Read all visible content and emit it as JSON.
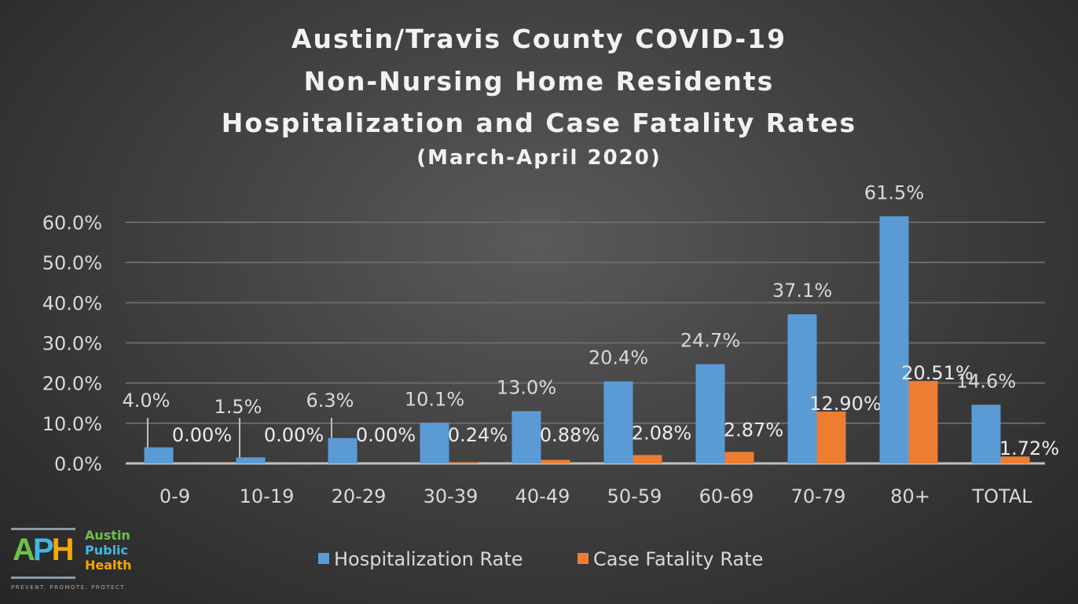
{
  "chart_data": {
    "type": "bar",
    "title": [
      "Austin/Travis County COVID-19",
      "Non-Nursing Home Residents",
      "Hospitalization and Case Fatality Rates"
    ],
    "subtitle": "(March-April 2020)",
    "categories": [
      "0-9",
      "10-19",
      "20-29",
      "30-39",
      "40-49",
      "50-59",
      "60-69",
      "70-79",
      "80+",
      "TOTAL"
    ],
    "series": [
      {
        "name": "Hospitalization Rate",
        "color": "#5b9bd5",
        "values": [
          4.0,
          1.5,
          6.3,
          10.1,
          13.0,
          20.4,
          24.7,
          37.1,
          61.5,
          14.6
        ],
        "labels": [
          "4.0%",
          "1.5%",
          "6.3%",
          "10.1%",
          "13.0%",
          "20.4%",
          "24.7%",
          "37.1%",
          "61.5%",
          "14.6%"
        ]
      },
      {
        "name": "Case Fatality Rate",
        "color": "#ed7d31",
        "values": [
          0.0,
          0.0,
          0.0,
          0.24,
          0.88,
          2.08,
          2.87,
          12.9,
          20.51,
          1.72
        ],
        "labels": [
          "0.00%",
          "0.00%",
          "0.00%",
          "0.24%",
          "0.88%",
          "2.08%",
          "2.87%",
          "12.90%",
          "20.51%",
          "1.72%"
        ]
      }
    ],
    "yticks": [
      "0.0%",
      "10.0%",
      "20.0%",
      "30.0%",
      "40.0%",
      "50.0%",
      "60.0%"
    ],
    "ylim": [
      0,
      60
    ],
    "grid": true,
    "legend": "bottom"
  },
  "logo": {
    "letters": "APH",
    "line1": "Austin",
    "line2": "Public",
    "line3": "Health",
    "tagline": "PREVENT. PROMOTE. PROTECT."
  }
}
